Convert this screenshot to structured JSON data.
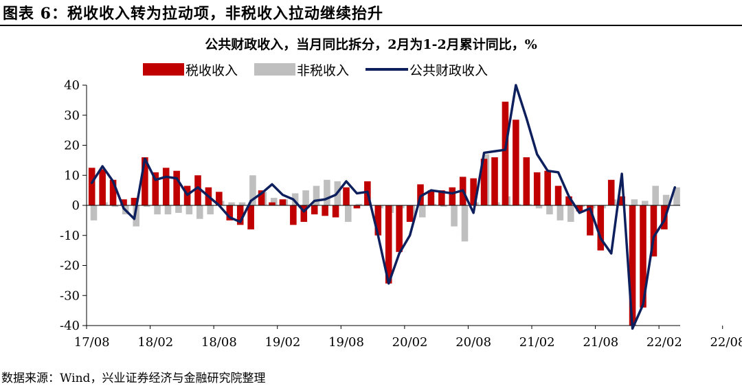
{
  "figure": {
    "title": "图表 6：税收收入转为拉动项，非税收入拉动继续抬升",
    "source": "数据来源：Wind，兴业证券经济与金融研究院整理"
  },
  "colors": {
    "tax": "#c00000",
    "nontax": "#bfbfbf",
    "total": "#0d1f5c"
  },
  "chart_data": {
    "type": "bar",
    "title": "公共财政收入，当月同比拆分，2月为1-2月累计同比，%",
    "xlabel": "",
    "ylabel": "",
    "ylim": [
      -40,
      40
    ],
    "yticks": [
      "40",
      "30",
      "20",
      "10",
      "0",
      "-10",
      "-20",
      "-30",
      "-40"
    ],
    "xtick_labels": [
      "17/08",
      "18/02",
      "18/08",
      "19/02",
      "19/08",
      "20/02",
      "20/08",
      "21/02",
      "21/08",
      "22/02",
      "22/08"
    ],
    "xtick_index": [
      0,
      6,
      12,
      18,
      24,
      30,
      36,
      42,
      48,
      54,
      60
    ],
    "legend_position": "top",
    "categories": [
      "17/08",
      "17/09",
      "17/10",
      "17/11",
      "17/12",
      "18/02",
      "18/03",
      "18/04",
      "18/05",
      "18/06",
      "18/07",
      "18/08",
      "18/09",
      "18/10",
      "18/11",
      "18/12",
      "19/02",
      "19/03",
      "19/04",
      "19/05",
      "19/06",
      "19/07",
      "19/08",
      "19/09",
      "19/10",
      "19/11",
      "19/12",
      "20/02",
      "20/03",
      "20/04",
      "20/05",
      "20/06",
      "20/07",
      "20/08",
      "20/09",
      "20/10",
      "20/11",
      "20/12",
      "21/02",
      "21/03",
      "21/04",
      "21/05",
      "21/06",
      "21/07",
      "21/08",
      "21/09",
      "21/10",
      "21/11",
      "21/12",
      "22/02",
      "22/03",
      "22/04",
      "22/05",
      "22/06",
      "22/07",
      "22/08"
    ],
    "series": [
      {
        "name": "税收收入",
        "kind": "bar",
        "values": [
          12.5,
          12.0,
          8.5,
          2.0,
          2.5,
          16.0,
          11.0,
          12.5,
          11.5,
          6.5,
          10.0,
          6.0,
          4.5,
          -5.0,
          -6.5,
          -8.0,
          5.0,
          1.0,
          2.0,
          -6.5,
          -5.5,
          -3.0,
          -3.5,
          -4.0,
          6.0,
          -1.0,
          8.0,
          -10.0,
          -26.0,
          -15.5,
          -5.5,
          7.0,
          5.0,
          5.0,
          6.0,
          9.5,
          9.0,
          15.5,
          16.0,
          34.5,
          28.5,
          16.0,
          11.0,
          11.5,
          6.5,
          3.0,
          -2.0,
          -10.0,
          -15.0,
          8.5,
          3.0,
          -40.0,
          -34.0,
          -17.0,
          -8.0,
          0.0
        ]
      },
      {
        "name": "非税收入",
        "kind": "bar",
        "values": [
          -5.0,
          1.0,
          -0.5,
          -3.0,
          -7.0,
          -0.5,
          -3.0,
          -3.0,
          -2.5,
          -3.0,
          -4.5,
          -3.0,
          1.5,
          1.0,
          1.0,
          10.0,
          4.5,
          2.5,
          2.0,
          4.0,
          5.0,
          6.5,
          8.5,
          8.0,
          -5.5,
          0.5,
          0.0,
          -1.0,
          -2.5,
          -1.0,
          -5.0,
          -4.0,
          0.5,
          -0.5,
          -7.0,
          -12.0,
          1.0,
          17.0,
          1.0,
          3.0,
          0.5,
          0.5,
          -1.0,
          -3.0,
          -5.0,
          -5.5,
          -0.5,
          -1.0,
          -1.0,
          2.0,
          0.5,
          2.0,
          1.5,
          6.5,
          3.5,
          6.0
        ]
      },
      {
        "name": "公共财政收入",
        "kind": "line",
        "values": [
          7.5,
          13.0,
          8.0,
          -1.0,
          -4.5,
          15.5,
          8.5,
          9.5,
          9.0,
          3.5,
          6.0,
          3.0,
          0.0,
          -4.0,
          -5.5,
          1.5,
          4.0,
          7.0,
          3.5,
          2.0,
          -2.0,
          1.5,
          2.0,
          3.5,
          8.0,
          4.0,
          4.5,
          -10.0,
          -26.0,
          -16.0,
          -10.0,
          3.0,
          5.0,
          4.5,
          4.0,
          5.0,
          -2.5,
          17.5,
          18.0,
          18.5,
          40.0,
          29.0,
          17.0,
          11.5,
          11.0,
          3.0,
          -2.5,
          -1.0,
          -11.0,
          -16.0,
          10.5,
          -41.0,
          -33.0,
          -10.5,
          -5.0,
          6.0
        ]
      }
    ]
  }
}
